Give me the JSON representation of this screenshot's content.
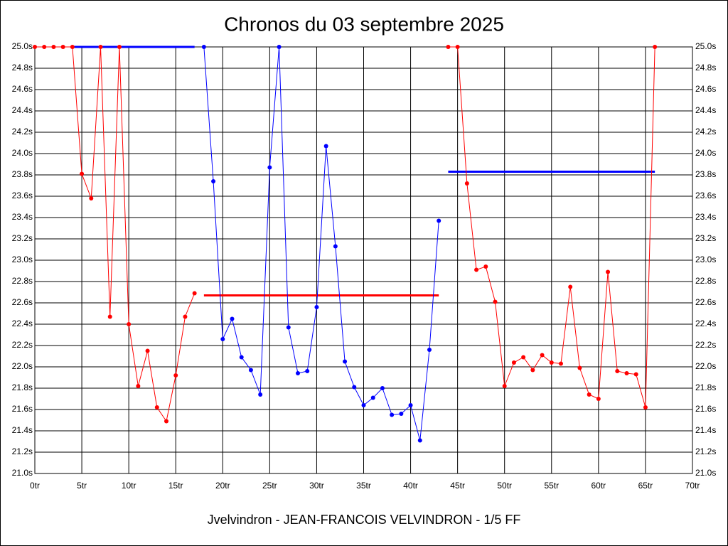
{
  "chart_data": {
    "type": "line",
    "title": "Chronos du 03 septembre 2025",
    "x_label": "Jvelvindron - JEAN-FRANCOIS VELVINDRON - 1/5 FF",
    "x": [
      0,
      1,
      2,
      3,
      4,
      5,
      6,
      7,
      8,
      9,
      10,
      11,
      12,
      13,
      14,
      15,
      16,
      17,
      18,
      19,
      20,
      21,
      22,
      23,
      24,
      25,
      26,
      27,
      28,
      29,
      30,
      31,
      32,
      33,
      34,
      35,
      36,
      37,
      38,
      39,
      40,
      41,
      42,
      43,
      44,
      45,
      46,
      47,
      48,
      49,
      50,
      51,
      52,
      53,
      54,
      55,
      56,
      57,
      58,
      59,
      60,
      61,
      62,
      63,
      64,
      65,
      66
    ],
    "series": [
      {
        "color": "#ff0000",
        "values": [
          25.0,
          25.0,
          25.0,
          25.0,
          25.0,
          23.81,
          23.58,
          25.0,
          22.47,
          25.0,
          22.4,
          21.82,
          22.15,
          21.62,
          21.49,
          21.92,
          22.47,
          22.69,
          null,
          null,
          null,
          null,
          null,
          null,
          null,
          null,
          null,
          null,
          null,
          null,
          null,
          null,
          null,
          null,
          null,
          null,
          null,
          null,
          null,
          null,
          null,
          null,
          null,
          null,
          25.0,
          25.0,
          23.72,
          22.91,
          22.94,
          22.61,
          21.82,
          22.04,
          22.09,
          21.97,
          22.11,
          22.04,
          22.03,
          22.75,
          21.99,
          21.74,
          21.7,
          22.89,
          21.96,
          21.94,
          21.93,
          21.62,
          25.0
        ]
      },
      {
        "color": "#0000ff",
        "values": [
          null,
          null,
          null,
          null,
          null,
          null,
          null,
          null,
          null,
          null,
          null,
          null,
          null,
          null,
          null,
          null,
          null,
          null,
          25.0,
          23.74,
          22.26,
          22.45,
          22.09,
          21.97,
          21.74,
          23.87,
          25.0,
          22.37,
          21.94,
          21.96,
          22.56,
          24.07,
          23.13,
          22.05,
          21.81,
          21.64,
          21.71,
          21.8,
          21.55,
          21.56,
          21.64,
          21.31,
          22.16,
          23.37,
          null,
          null,
          null,
          null,
          null,
          null,
          null,
          null,
          null,
          null,
          null,
          null,
          null,
          null,
          null,
          null,
          null,
          null,
          null,
          null,
          null,
          null,
          null
        ]
      }
    ],
    "mean_lines": [
      {
        "color": "#0000ff",
        "x": [
          4,
          17
        ],
        "value": 25.0
      },
      {
        "color": "#ff0000",
        "x": [
          18,
          43
        ],
        "value": 22.67
      },
      {
        "color": "#0000ff",
        "x": [
          44,
          66
        ],
        "value": 23.83
      }
    ],
    "xlim": [
      0,
      70
    ],
    "xticks": [
      {
        "value": 0,
        "label": "0tr"
      },
      {
        "value": 5,
        "label": "5tr"
      },
      {
        "value": 10,
        "label": "10tr"
      },
      {
        "value": 15,
        "label": "15tr"
      },
      {
        "value": 20,
        "label": "20tr"
      },
      {
        "value": 25,
        "label": "25tr"
      },
      {
        "value": 30,
        "label": "30tr"
      },
      {
        "value": 35,
        "label": "35tr"
      },
      {
        "value": 40,
        "label": "40tr"
      },
      {
        "value": 45,
        "label": "45tr"
      },
      {
        "value": 50,
        "label": "50tr"
      },
      {
        "value": 55,
        "label": "55tr"
      },
      {
        "value": 60,
        "label": "60tr"
      },
      {
        "value": 65,
        "label": "65tr"
      },
      {
        "value": 70,
        "label": "70tr"
      }
    ],
    "ylim": [
      21.0,
      25.0
    ],
    "yticks": [
      {
        "value": 21.0,
        "label": "21.0s"
      },
      {
        "value": 21.2,
        "label": "21.2s"
      },
      {
        "value": 21.4,
        "label": "21.4s"
      },
      {
        "value": 21.6,
        "label": "21.6s"
      },
      {
        "value": 21.8,
        "label": "21.8s"
      },
      {
        "value": 22.0,
        "label": "22.0s"
      },
      {
        "value": 22.2,
        "label": "22.2s"
      },
      {
        "value": 22.4,
        "label": "22.4s"
      },
      {
        "value": 22.6,
        "label": "22.6s"
      },
      {
        "value": 22.8,
        "label": "22.8s"
      },
      {
        "value": 23.0,
        "label": "23.0s"
      },
      {
        "value": 23.2,
        "label": "23.2s"
      },
      {
        "value": 23.4,
        "label": "23.4s"
      },
      {
        "value": 23.6,
        "label": "23.6s"
      },
      {
        "value": 23.8,
        "label": "23.8s"
      },
      {
        "value": 24.0,
        "label": "24.0s"
      },
      {
        "value": 24.2,
        "label": "24.2s"
      },
      {
        "value": 24.4,
        "label": "24.4s"
      },
      {
        "value": 24.6,
        "label": "24.6s"
      },
      {
        "value": 24.8,
        "label": "24.8s"
      },
      {
        "value": 25.0,
        "label": "25.0s"
      }
    ],
    "grid": true
  }
}
